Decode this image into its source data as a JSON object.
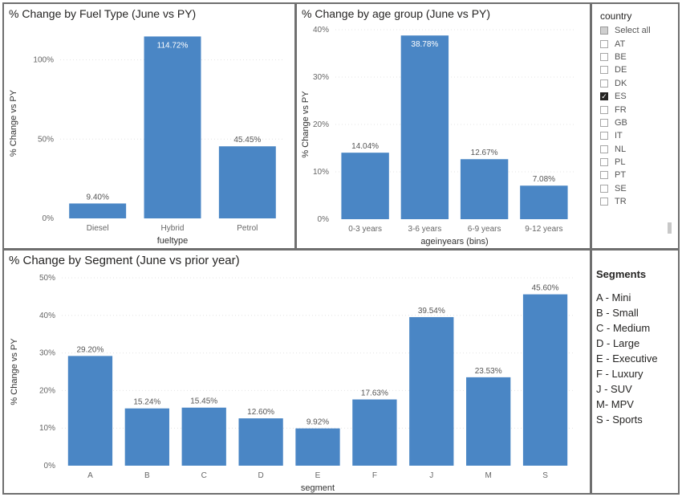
{
  "fuel_panel": {
    "title": "% Change by Fuel Type (June vs PY)"
  },
  "age_panel": {
    "title": "% Change by age group (June vs PY)"
  },
  "segment_panel": {
    "title": "% Change by Segment (June vs prior year)"
  },
  "chart_data": [
    {
      "type": "bar",
      "title": "% Change by Fuel Type (June vs PY)",
      "categories": [
        "Diesel",
        "Hybrid",
        "Petrol"
      ],
      "values": [
        9.4,
        114.72,
        45.45
      ],
      "data_labels": [
        "9.40%",
        "114.72%",
        "45.45%"
      ],
      "xlabel": "fueltype",
      "ylabel": "% Change vs PY",
      "ylim": [
        0,
        120
      ],
      "yticks": [
        0,
        50,
        100
      ],
      "ytick_labels": [
        "0%",
        "50%",
        "100%"
      ],
      "grid": true,
      "color": "#4a86c5"
    },
    {
      "type": "bar",
      "title": "% Change by age group (June vs PY)",
      "categories": [
        "0-3 years",
        "3-6 years",
        "6-9 years",
        "9-12 years"
      ],
      "values": [
        14.04,
        38.78,
        12.67,
        7.08
      ],
      "data_labels": [
        "14.04%",
        "38.78%",
        "12.67%",
        "7.08%"
      ],
      "xlabel": "ageinyears (bins)",
      "ylabel": "% Change vs PY",
      "ylim": [
        0,
        40
      ],
      "yticks": [
        0,
        10,
        20,
        30,
        40
      ],
      "ytick_labels": [
        "0%",
        "10%",
        "20%",
        "30%",
        "40%"
      ],
      "grid": true,
      "color": "#4a86c5"
    },
    {
      "type": "bar",
      "title": "% Change by Segment (June vs prior year)",
      "categories": [
        "A",
        "B",
        "C",
        "D",
        "E",
        "F",
        "J",
        "M",
        "S"
      ],
      "values": [
        29.2,
        15.24,
        15.45,
        12.6,
        9.92,
        17.63,
        39.54,
        23.53,
        45.6
      ],
      "data_labels": [
        "29.20%",
        "15.24%",
        "15.45%",
        "12.60%",
        "9.92%",
        "17.63%",
        "39.54%",
        "23.53%",
        "45.60%"
      ],
      "xlabel": "segment",
      "ylabel": "% Change vs PY",
      "ylim": [
        0,
        50
      ],
      "yticks": [
        0,
        10,
        20,
        30,
        40,
        50
      ],
      "ytick_labels": [
        "0%",
        "10%",
        "20%",
        "30%",
        "40%",
        "50%"
      ],
      "grid": true,
      "color": "#4a86c5"
    }
  ],
  "slicer": {
    "title": "country",
    "items": [
      {
        "label": "Select all",
        "state": "partial"
      },
      {
        "label": "AT",
        "state": "unchecked"
      },
      {
        "label": "BE",
        "state": "unchecked"
      },
      {
        "label": "DE",
        "state": "unchecked"
      },
      {
        "label": "DK",
        "state": "unchecked"
      },
      {
        "label": "ES",
        "state": "checked"
      },
      {
        "label": "FR",
        "state": "unchecked"
      },
      {
        "label": "GB",
        "state": "unchecked"
      },
      {
        "label": "IT",
        "state": "unchecked"
      },
      {
        "label": "NL",
        "state": "unchecked"
      },
      {
        "label": "PL",
        "state": "unchecked"
      },
      {
        "label": "PT",
        "state": "unchecked"
      },
      {
        "label": "SE",
        "state": "unchecked"
      },
      {
        "label": "TR",
        "state": "unchecked"
      }
    ]
  },
  "segment_legend": {
    "heading": "Segments",
    "items": [
      "A - Mini",
      "B - Small",
      "C - Medium",
      "D - Large",
      "E - Executive",
      "F - Luxury",
      "J - SUV",
      "M- MPV",
      "S - Sports"
    ]
  }
}
